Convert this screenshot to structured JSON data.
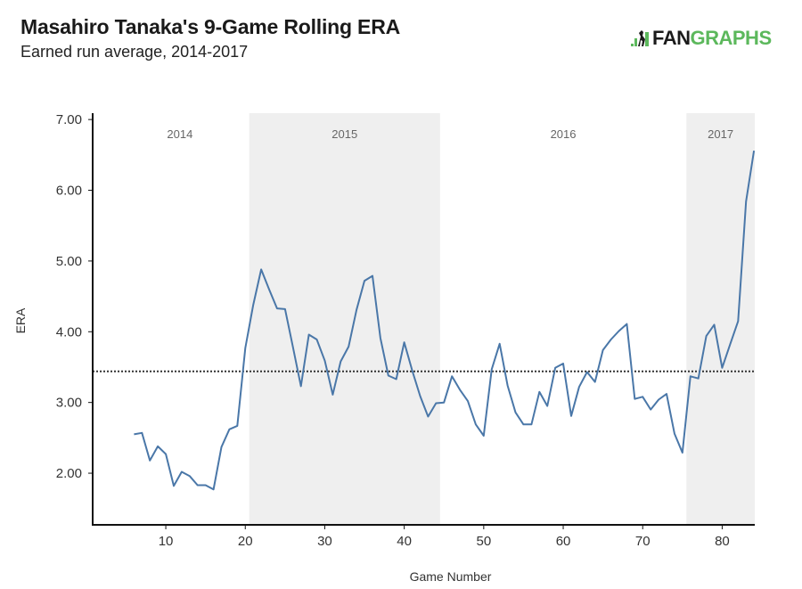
{
  "header": {
    "title": "Masahiro Tanaka's 9-Game Rolling ERA",
    "subtitle": "Earned run average, 2014-2017"
  },
  "logo": {
    "part1": "FAN",
    "part2": "GRAPHS",
    "icon": "batter-silhouette-icon",
    "colors": {
      "dark": "#1b1b1b",
      "green": "#5cb85c"
    }
  },
  "chart_data": {
    "type": "line",
    "title": "Masahiro Tanaka's 9-Game Rolling ERA",
    "subtitle": "Earned run average, 2014-2017",
    "xlabel": "Game Number",
    "ylabel": "ERA",
    "xlim": [
      0.8,
      84.1
    ],
    "ylim": [
      1.27,
      7.09
    ],
    "xticks": [
      10,
      20,
      30,
      40,
      50,
      60,
      70,
      80
    ],
    "xtick_labels": [
      "10",
      "20",
      "30",
      "40",
      "50",
      "60",
      "70",
      "80"
    ],
    "yticks": [
      2,
      3,
      4,
      5,
      6,
      7
    ],
    "ytick_labels": [
      "2.00",
      "3.00",
      "4.00",
      "5.00",
      "6.00",
      "7.00"
    ],
    "grid": false,
    "line_color": "#4a77a8",
    "reference_line": {
      "value": 3.44,
      "style": "dotted",
      "color": "#333333"
    },
    "year_bands": [
      {
        "label": "2014",
        "start": 0.8,
        "end": 20.5,
        "shaded": false
      },
      {
        "label": "2015",
        "start": 20.5,
        "end": 44.5,
        "shaded": true
      },
      {
        "label": "2016",
        "start": 44.5,
        "end": 75.5,
        "shaded": false
      },
      {
        "label": "2017",
        "start": 75.5,
        "end": 84.1,
        "shaded": true
      }
    ],
    "band_color": "#efefef",
    "series": [
      {
        "name": "9-Game Rolling ERA",
        "x": [
          6,
          7,
          8,
          9,
          10,
          11,
          12,
          13,
          14,
          15,
          16,
          17,
          18,
          19,
          20,
          21,
          22,
          23,
          24,
          25,
          26,
          27,
          28,
          29,
          30,
          31,
          32,
          33,
          34,
          35,
          36,
          37,
          38,
          39,
          40,
          41,
          42,
          43,
          44,
          45,
          46,
          47,
          48,
          49,
          50,
          51,
          52,
          53,
          54,
          55,
          56,
          57,
          58,
          59,
          60,
          61,
          62,
          63,
          64,
          65,
          66,
          67,
          68,
          69,
          70,
          71,
          72,
          73,
          74,
          75,
          76,
          77,
          78,
          79,
          80,
          81,
          82,
          83,
          84
        ],
        "values": [
          2.55,
          2.57,
          2.18,
          2.38,
          2.27,
          1.82,
          2.02,
          1.96,
          1.83,
          1.83,
          1.77,
          2.37,
          2.62,
          2.67,
          3.77,
          4.38,
          4.88,
          4.6,
          4.33,
          4.32,
          3.78,
          3.23,
          3.96,
          3.89,
          3.59,
          3.11,
          3.58,
          3.79,
          4.31,
          4.72,
          4.79,
          3.91,
          3.38,
          3.33,
          3.85,
          3.45,
          3.09,
          2.8,
          2.99,
          3.0,
          3.37,
          3.18,
          3.02,
          2.69,
          2.53,
          3.47,
          3.83,
          3.24,
          2.86,
          2.69,
          2.69,
          3.15,
          2.95,
          3.49,
          3.55,
          2.81,
          3.22,
          3.43,
          3.29,
          3.74,
          3.89,
          4.01,
          4.11,
          3.05,
          3.08,
          2.9,
          3.04,
          3.12,
          2.56,
          2.29,
          3.37,
          3.34,
          3.94,
          4.1,
          3.49,
          3.82,
          4.15,
          5.84,
          6.56
        ]
      }
    ]
  }
}
